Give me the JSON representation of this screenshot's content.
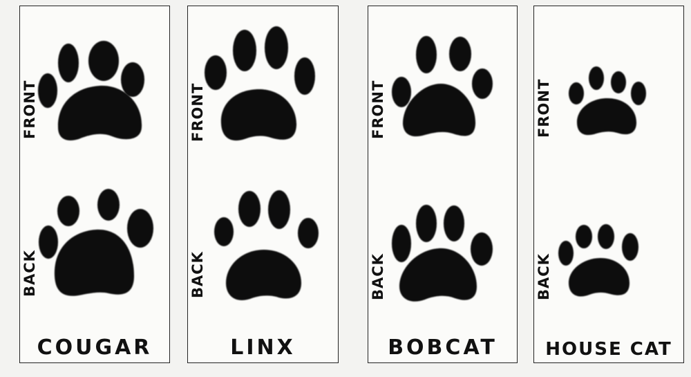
{
  "panels": [
    {
      "name": "COUGAR",
      "front_label": "FRONT",
      "back_label": "BACK"
    },
    {
      "name": "LINX",
      "front_label": "FRONT",
      "back_label": "BACK"
    },
    {
      "name": "BOBCAT",
      "front_label": "FRONT",
      "back_label": "BACK"
    },
    {
      "name": "HOUSE CAT",
      "front_label": "FRONT",
      "back_label": "BACK"
    }
  ],
  "colors": {
    "ink": "#0d0d0d",
    "background": "#f3f3f1",
    "panel": "#fbfbf9"
  }
}
